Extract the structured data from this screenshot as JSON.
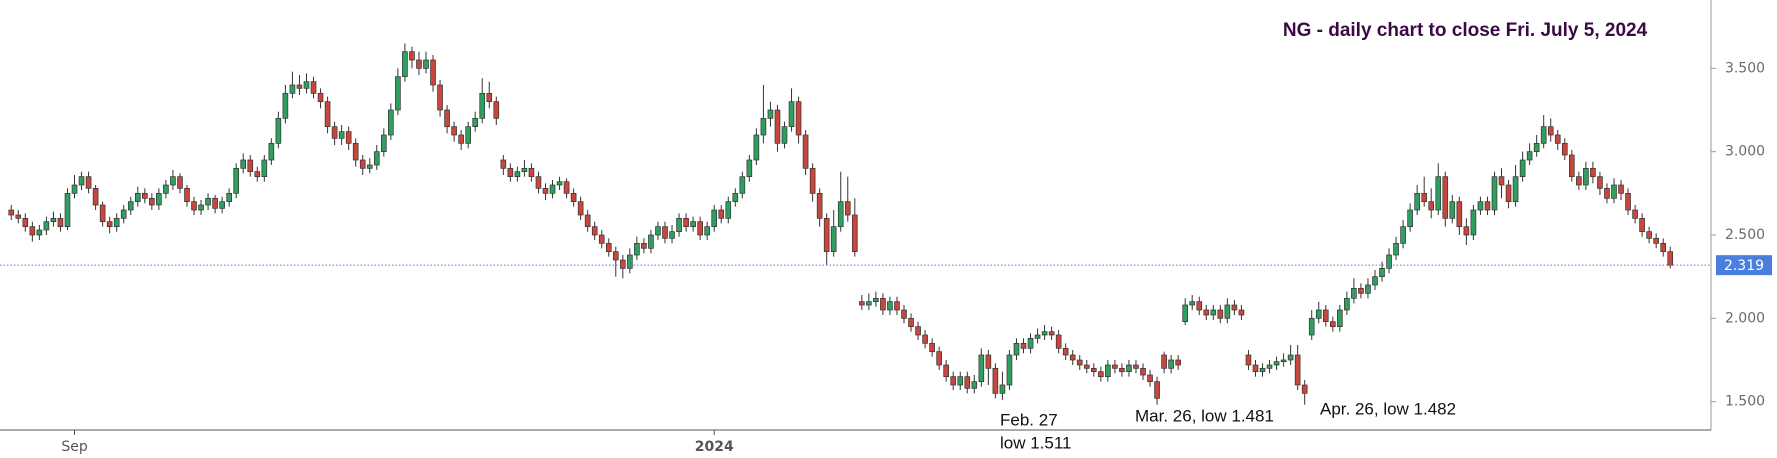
{
  "chart_data": {
    "type": "candlestick",
    "title": "NG - daily chart to close Fri. July 5, 2024",
    "up_color": "#2f9e5f",
    "down_color": "#c8463d",
    "last_color": "#4a7fe0",
    "xlim": [
      -1.6,
      241.8
    ],
    "xticks": [
      {
        "value": 9,
        "label": "Sep"
      },
      {
        "value": 100,
        "label": "2024"
      }
    ],
    "ylim": [
      1.33,
      3.91
    ],
    "yticks": [
      {
        "value": 1.5,
        "label": "1.500"
      },
      {
        "value": 2,
        "label": "2.000"
      },
      {
        "value": 2.5,
        "label": "2.500"
      },
      {
        "value": 3,
        "label": "3.000"
      },
      {
        "value": 3.5,
        "label": "3.500"
      }
    ],
    "annotations": [
      {
        "lines": [
          "Feb. 27",
          "low 1.511"
        ]
      },
      {
        "lines": [
          "Mar. 26, low 1.481"
        ]
      },
      {
        "lines": [
          "Apr. 26, low 1.482"
        ]
      }
    ],
    "open": [
      2.65,
      2.62,
      2.6,
      2.55,
      2.5,
      2.53,
      2.58,
      2.6,
      2.55,
      2.75,
      2.8,
      2.85,
      2.78,
      2.68,
      2.58,
      2.55,
      2.6,
      2.65,
      2.7,
      2.75,
      2.72,
      2.68,
      2.75,
      2.8,
      2.85,
      2.78,
      2.7,
      2.65,
      2.68,
      2.72,
      2.66,
      2.7,
      2.75,
      2.9,
      2.95,
      2.88,
      2.85,
      2.95,
      3.05,
      3.2,
      3.35,
      3.4,
      3.38,
      3.42,
      3.35,
      3.3,
      3.15,
      3.08,
      3.12,
      3.05,
      2.95,
      2.9,
      2.92,
      3.0,
      3.1,
      3.25,
      3.45,
      3.6,
      3.55,
      3.5,
      3.55,
      3.4,
      3.25,
      3.15,
      3.1,
      3.05,
      3.15,
      3.2,
      3.35,
      3.3,
      2.95,
      2.9,
      2.85,
      2.88,
      2.9,
      2.85,
      2.78,
      2.75,
      2.8,
      2.82,
      2.75,
      2.7,
      2.62,
      2.55,
      2.5,
      2.45,
      2.4,
      2.35,
      2.3,
      2.38,
      2.45,
      2.42,
      2.5,
      2.55,
      2.48,
      2.52,
      2.6,
      2.55,
      2.58,
      2.5,
      2.55,
      2.65,
      2.6,
      2.7,
      2.75,
      2.85,
      2.95,
      3.1,
      3.2,
      3.25,
      3.05,
      3.15,
      3.3,
      3.1,
      2.9,
      2.75,
      2.6,
      2.4,
      2.55,
      2.7,
      2.62,
      2.1,
      2.08,
      2.1,
      2.12,
      2.05,
      2.1,
      2.05,
      2.0,
      1.95,
      1.9,
      1.85,
      1.8,
      1.72,
      1.65,
      1.6,
      1.65,
      1.58,
      1.62,
      1.78,
      1.7,
      1.55,
      1.6,
      1.78,
      1.85,
      1.82,
      1.88,
      1.9,
      1.92,
      1.9,
      1.82,
      1.78,
      1.75,
      1.72,
      1.7,
      1.68,
      1.65,
      1.72,
      1.7,
      1.68,
      1.72,
      1.7,
      1.66,
      1.62,
      1.78,
      1.7,
      1.75,
      1.98,
      2.08,
      2.1,
      2.05,
      2.02,
      2.05,
      2.0,
      2.08,
      2.05,
      1.78,
      1.72,
      1.68,
      1.7,
      1.72,
      1.74,
      1.75,
      1.78,
      1.6,
      1.9,
      2.0,
      2.05,
      1.98,
      1.95,
      2.05,
      2.12,
      2.18,
      2.15,
      2.2,
      2.25,
      2.3,
      2.38,
      2.45,
      2.55,
      2.65,
      2.75,
      2.7,
      2.65,
      2.85,
      2.6,
      2.7,
      2.55,
      2.5,
      2.65,
      2.7,
      2.65,
      2.85,
      2.8,
      2.7,
      2.85,
      2.95,
      3.0,
      3.05,
      3.15,
      3.1,
      3.05,
      2.98,
      2.85,
      2.8,
      2.9,
      2.85,
      2.78,
      2.72,
      2.8,
      2.75,
      2.65,
      2.6,
      2.52,
      2.48,
      2.45,
      2.4
    ],
    "high": [
      2.68,
      2.65,
      2.63,
      2.58,
      2.56,
      2.61,
      2.64,
      2.63,
      2.78,
      2.86,
      2.88,
      2.88,
      2.8,
      2.7,
      2.61,
      2.63,
      2.68,
      2.73,
      2.79,
      2.78,
      2.75,
      2.78,
      2.83,
      2.89,
      2.87,
      2.8,
      2.73,
      2.71,
      2.75,
      2.74,
      2.73,
      2.78,
      2.93,
      2.99,
      2.98,
      2.91,
      2.98,
      3.08,
      3.24,
      3.4,
      3.48,
      3.46,
      3.47,
      3.45,
      3.38,
      3.33,
      3.18,
      3.16,
      3.15,
      3.08,
      2.98,
      2.96,
      3.04,
      3.14,
      3.29,
      3.5,
      3.65,
      3.63,
      3.6,
      3.6,
      3.58,
      3.43,
      3.28,
      3.18,
      3.13,
      3.18,
      3.24,
      3.44,
      3.42,
      3.33,
      2.98,
      2.93,
      2.91,
      2.95,
      2.93,
      2.88,
      2.81,
      2.83,
      2.85,
      2.84,
      2.78,
      2.73,
      2.65,
      2.58,
      2.53,
      2.48,
      2.43,
      2.38,
      2.42,
      2.49,
      2.48,
      2.53,
      2.58,
      2.58,
      2.56,
      2.63,
      2.63,
      2.61,
      2.61,
      2.58,
      2.68,
      2.68,
      2.73,
      2.78,
      2.88,
      2.98,
      3.14,
      3.4,
      3.3,
      3.28,
      3.18,
      3.38,
      3.33,
      3.13,
      2.93,
      2.78,
      2.63,
      2.65,
      2.88,
      2.85,
      2.72,
      2.14,
      2.15,
      2.16,
      2.15,
      2.13,
      2.13,
      2.08,
      2.03,
      1.98,
      1.93,
      1.88,
      1.83,
      1.75,
      1.68,
      1.68,
      1.68,
      1.66,
      1.82,
      1.81,
      1.73,
      1.68,
      1.81,
      1.88,
      1.88,
      1.91,
      1.94,
      1.96,
      1.95,
      1.93,
      1.85,
      1.81,
      1.78,
      1.75,
      1.73,
      1.71,
      1.75,
      1.75,
      1.73,
      1.75,
      1.75,
      1.73,
      1.69,
      1.65,
      1.8,
      1.78,
      1.78,
      2.12,
      2.14,
      2.13,
      2.08,
      2.08,
      2.08,
      2.12,
      2.11,
      2.08,
      1.81,
      1.75,
      1.73,
      1.75,
      1.77,
      1.79,
      1.84,
      1.84,
      1.63,
      2.05,
      2.1,
      2.08,
      2.01,
      2.08,
      2.16,
      2.24,
      2.21,
      2.24,
      2.29,
      2.34,
      2.42,
      2.49,
      2.59,
      2.69,
      2.8,
      2.85,
      2.78,
      2.93,
      2.88,
      2.74,
      2.73,
      2.6,
      2.68,
      2.73,
      2.73,
      2.88,
      2.9,
      2.83,
      2.92,
      3.0,
      3.05,
      3.1,
      3.22,
      3.2,
      3.13,
      3.08,
      3.01,
      2.88,
      2.94,
      2.94,
      2.88,
      2.81,
      2.84,
      2.83,
      2.78,
      2.68,
      2.63,
      2.55,
      2.51,
      2.48,
      2.43
    ],
    "low": [
      2.59,
      2.57,
      2.52,
      2.46,
      2.47,
      2.5,
      2.55,
      2.52,
      2.53,
      2.72,
      2.77,
      2.75,
      2.65,
      2.55,
      2.51,
      2.52,
      2.57,
      2.62,
      2.67,
      2.69,
      2.65,
      2.65,
      2.72,
      2.77,
      2.75,
      2.67,
      2.62,
      2.62,
      2.65,
      2.63,
      2.63,
      2.67,
      2.72,
      2.87,
      2.85,
      2.82,
      2.82,
      2.92,
      3.02,
      3.17,
      3.32,
      3.34,
      3.35,
      3.32,
      3.26,
      3.11,
      3.04,
      3.04,
      3.01,
      2.91,
      2.86,
      2.87,
      2.89,
      2.97,
      3.07,
      3.22,
      3.42,
      3.5,
      3.46,
      3.47,
      3.36,
      3.21,
      3.11,
      3.06,
      3.01,
      3.02,
      3.12,
      3.17,
      3.26,
      3.16,
      2.86,
      2.82,
      2.82,
      2.85,
      2.82,
      2.75,
      2.71,
      2.72,
      2.77,
      2.72,
      2.67,
      2.59,
      2.52,
      2.47,
      2.42,
      2.37,
      2.25,
      2.24,
      2.27,
      2.35,
      2.39,
      2.39,
      2.47,
      2.45,
      2.45,
      2.49,
      2.52,
      2.52,
      2.47,
      2.47,
      2.52,
      2.57,
      2.57,
      2.67,
      2.72,
      2.82,
      2.92,
      3.05,
      3.15,
      3.0,
      3.02,
      3.12,
      3.05,
      2.86,
      2.7,
      2.55,
      2.32,
      2.37,
      2.52,
      2.58,
      2.37,
      2.05,
      2.05,
      2.07,
      2.02,
      2.02,
      2.02,
      1.97,
      1.92,
      1.87,
      1.82,
      1.77,
      1.69,
      1.62,
      1.57,
      1.57,
      1.55,
      1.55,
      1.59,
      1.6,
      1.52,
      1.511,
      1.57,
      1.75,
      1.79,
      1.79,
      1.85,
      1.87,
      1.87,
      1.79,
      1.75,
      1.72,
      1.69,
      1.67,
      1.65,
      1.62,
      1.62,
      1.67,
      1.65,
      1.65,
      1.67,
      1.63,
      1.59,
      1.481,
      1.67,
      1.67,
      1.69,
      1.96,
      2.05,
      2.02,
      1.99,
      1.99,
      1.97,
      1.97,
      2.02,
      1.99,
      1.69,
      1.65,
      1.65,
      1.67,
      1.69,
      1.71,
      1.72,
      1.57,
      1.482,
      1.87,
      1.97,
      1.95,
      1.92,
      1.92,
      2.02,
      2.09,
      2.12,
      2.12,
      2.17,
      2.22,
      2.27,
      2.35,
      2.42,
      2.52,
      2.62,
      2.67,
      2.6,
      2.62,
      2.55,
      2.57,
      2.5,
      2.44,
      2.47,
      2.62,
      2.62,
      2.62,
      2.72,
      2.66,
      2.67,
      2.82,
      2.92,
      2.97,
      3.02,
      3.06,
      3.01,
      2.95,
      2.82,
      2.77,
      2.77,
      2.81,
      2.74,
      2.69,
      2.69,
      2.71,
      2.62,
      2.57,
      2.49,
      2.45,
      2.42,
      2.37,
      2.3
    ],
    "close": [
      2.62,
      2.6,
      2.55,
      2.5,
      2.53,
      2.58,
      2.6,
      2.55,
      2.75,
      2.8,
      2.85,
      2.78,
      2.68,
      2.58,
      2.55,
      2.6,
      2.65,
      2.7,
      2.75,
      2.72,
      2.68,
      2.75,
      2.8,
      2.85,
      2.78,
      2.7,
      2.65,
      2.68,
      2.72,
      2.66,
      2.7,
      2.75,
      2.9,
      2.95,
      2.88,
      2.85,
      2.95,
      3.05,
      3.2,
      3.35,
      3.4,
      3.38,
      3.42,
      3.35,
      3.3,
      3.15,
      3.08,
      3.12,
      3.05,
      2.95,
      2.9,
      2.92,
      3.0,
      3.1,
      3.25,
      3.45,
      3.6,
      3.55,
      3.5,
      3.55,
      3.4,
      3.25,
      3.15,
      3.1,
      3.05,
      3.15,
      3.2,
      3.35,
      3.3,
      3.2,
      2.9,
      2.85,
      2.88,
      2.9,
      2.85,
      2.78,
      2.75,
      2.8,
      2.82,
      2.75,
      2.7,
      2.62,
      2.55,
      2.5,
      2.45,
      2.4,
      2.35,
      2.3,
      2.38,
      2.45,
      2.42,
      2.5,
      2.55,
      2.48,
      2.52,
      2.6,
      2.55,
      2.58,
      2.5,
      2.55,
      2.65,
      2.6,
      2.7,
      2.75,
      2.85,
      2.95,
      3.1,
      3.2,
      3.25,
      3.05,
      3.15,
      3.3,
      3.1,
      2.9,
      2.75,
      2.6,
      2.4,
      2.55,
      2.7,
      2.62,
      2.4,
      2.08,
      2.1,
      2.12,
      2.05,
      2.1,
      2.05,
      2.0,
      1.95,
      1.9,
      1.85,
      1.8,
      1.72,
      1.65,
      1.6,
      1.65,
      1.58,
      1.62,
      1.78,
      1.7,
      1.55,
      1.6,
      1.78,
      1.85,
      1.82,
      1.88,
      1.9,
      1.92,
      1.9,
      1.82,
      1.78,
      1.75,
      1.72,
      1.7,
      1.68,
      1.65,
      1.72,
      1.7,
      1.68,
      1.72,
      1.7,
      1.66,
      1.62,
      1.52,
      1.7,
      1.75,
      1.72,
      2.08,
      2.1,
      2.05,
      2.02,
      2.05,
      2.0,
      2.08,
      2.05,
      2.02,
      1.72,
      1.68,
      1.7,
      1.72,
      1.74,
      1.75,
      1.78,
      1.6,
      1.55,
      2.0,
      2.05,
      1.98,
      1.95,
      2.05,
      2.12,
      2.18,
      2.15,
      2.2,
      2.25,
      2.3,
      2.38,
      2.45,
      2.55,
      2.65,
      2.75,
      2.7,
      2.65,
      2.85,
      2.6,
      2.7,
      2.55,
      2.5,
      2.65,
      2.7,
      2.65,
      2.85,
      2.8,
      2.7,
      2.85,
      2.95,
      3.0,
      3.05,
      3.15,
      3.1,
      3.05,
      2.98,
      2.85,
      2.8,
      2.9,
      2.85,
      2.78,
      2.72,
      2.8,
      2.75,
      2.65,
      2.6,
      2.52,
      2.48,
      2.45,
      2.4,
      2.319
    ]
  }
}
